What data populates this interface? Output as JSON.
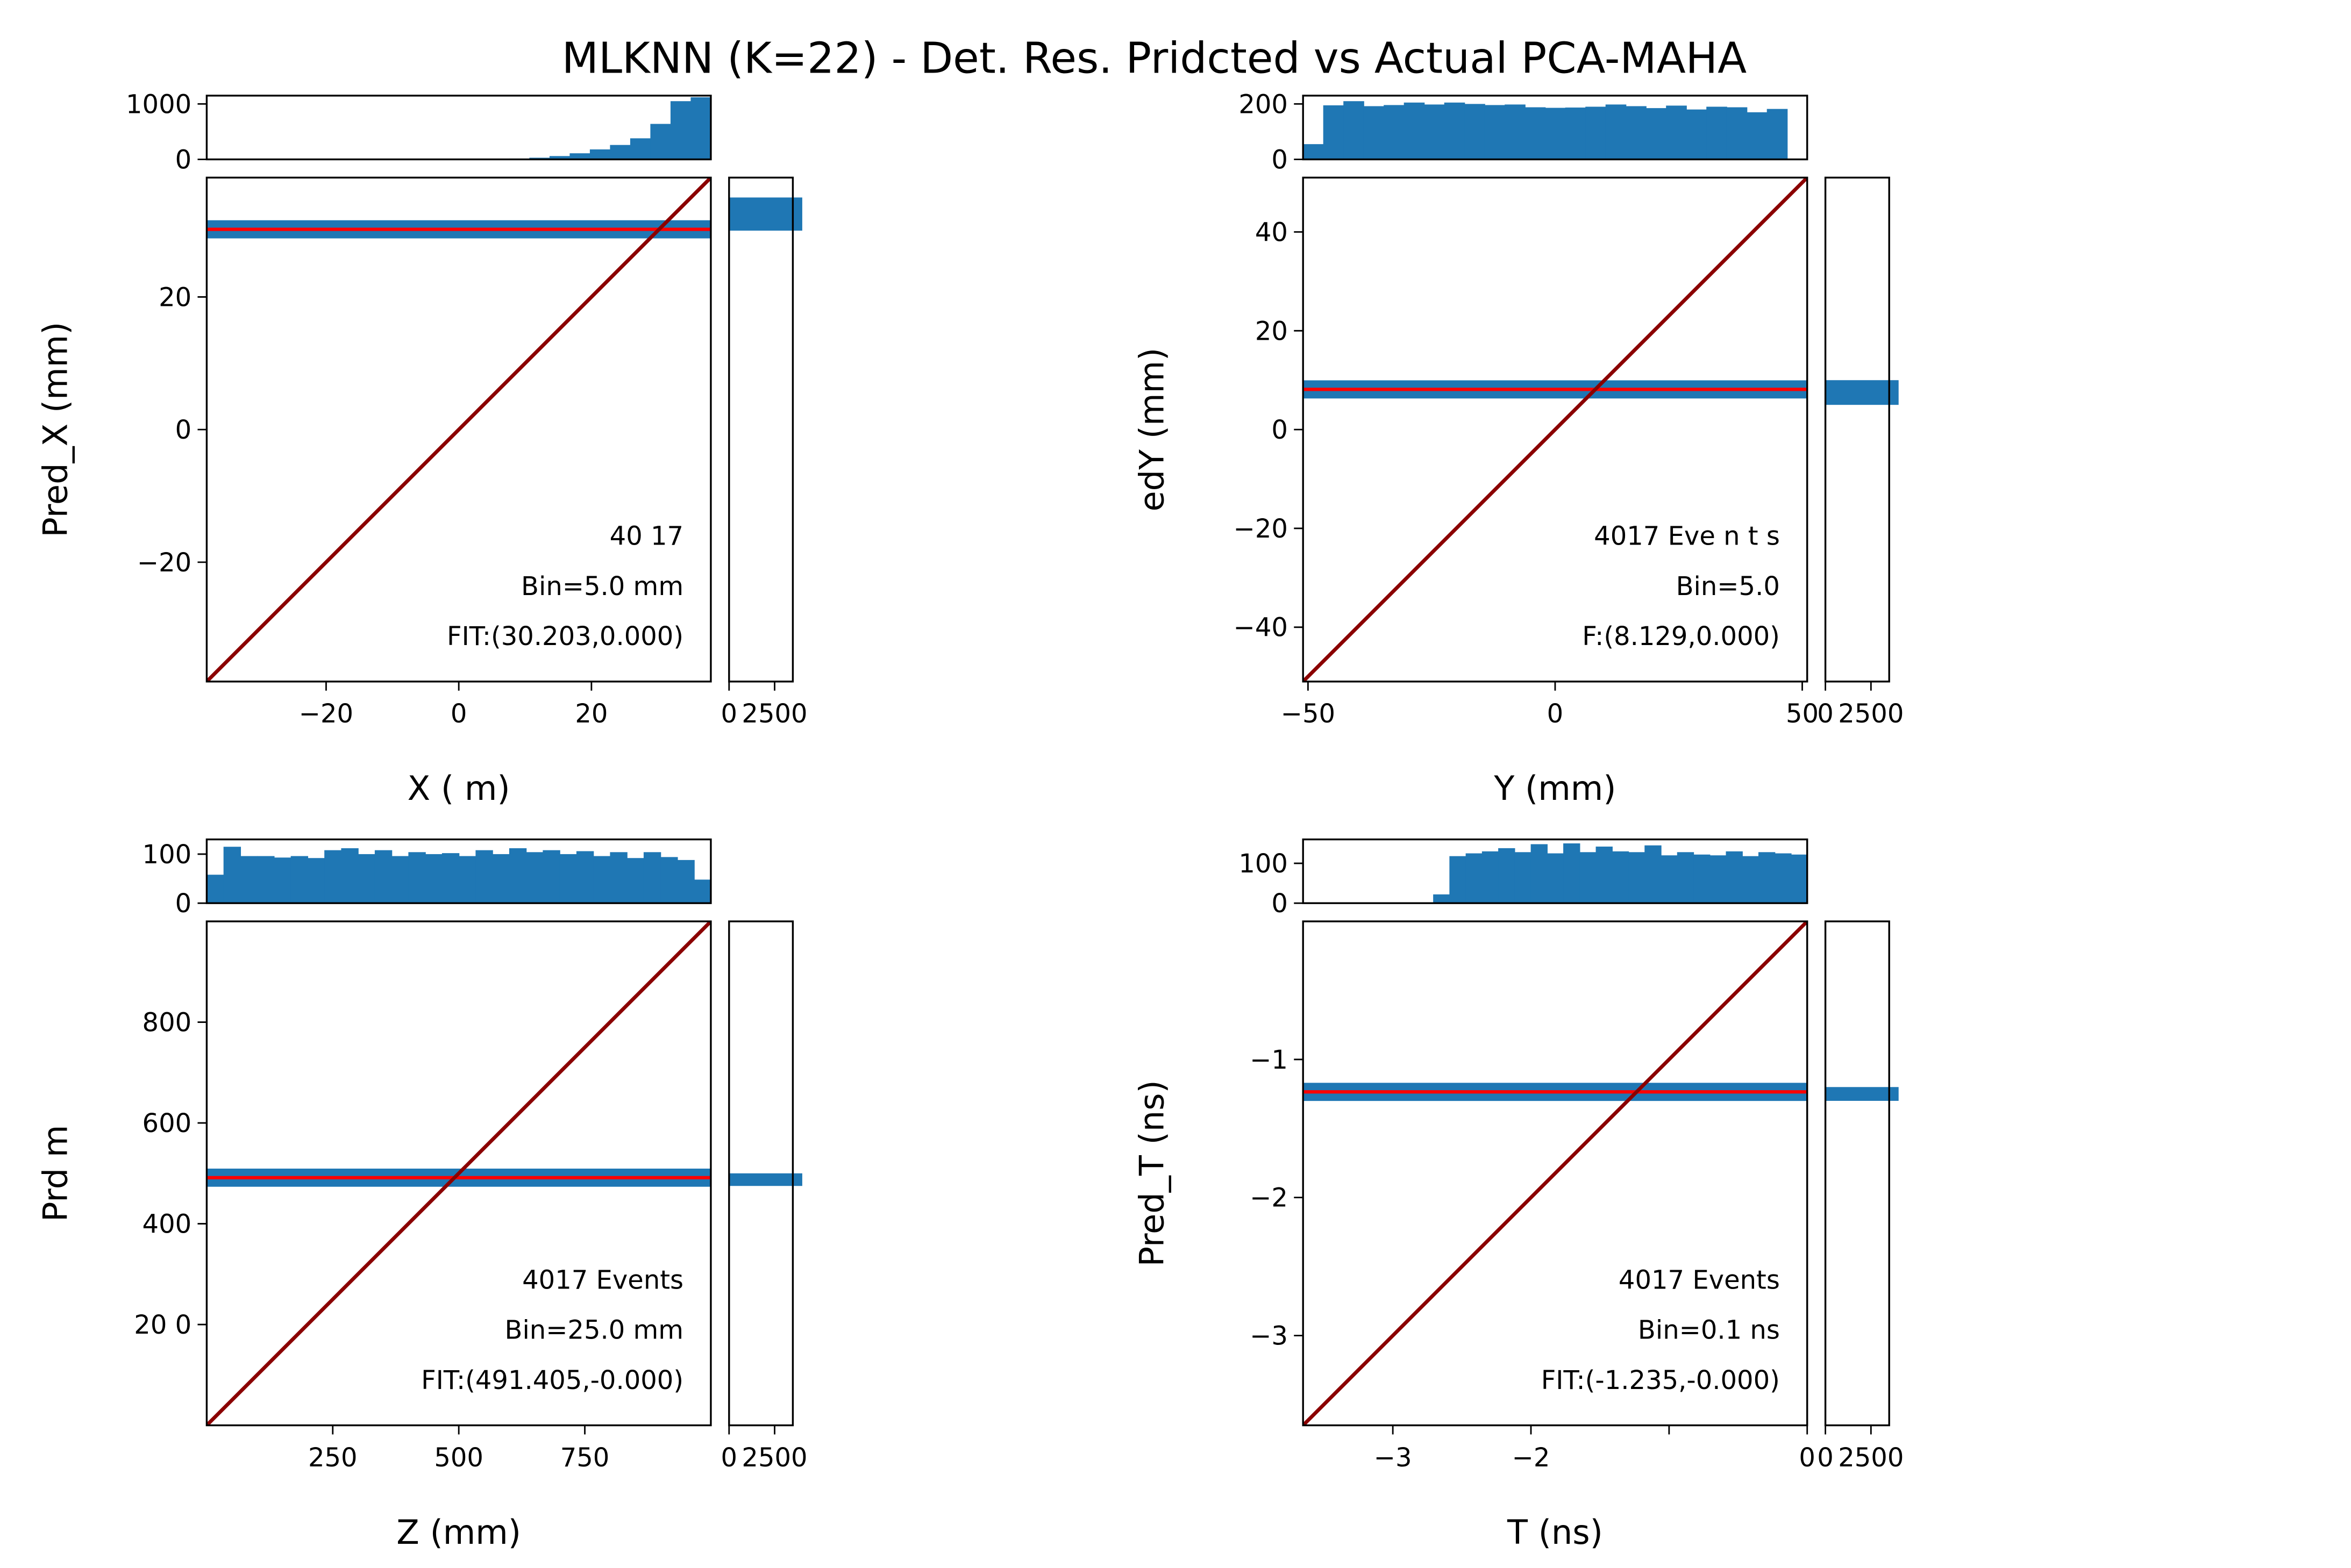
{
  "figure": {
    "title": "MLKNN (K=22) - Det. Res. Pridcted vs Actual PCA-MAHA"
  },
  "colors": {
    "hist": "#1f77b4",
    "points": "#1f77b4",
    "fit": "#ff0000",
    "identity": "#8b0000",
    "frame": "#000000"
  },
  "chart_data": [
    {
      "type": "scatter",
      "panel": "top-left",
      "xlabel": "X ( m)",
      "ylabel": "Pred_X (mm)",
      "xlim": [
        -38,
        38
      ],
      "ylim": [
        -38,
        38
      ],
      "xticks": [
        {
          "v": -20,
          "label": "−20"
        },
        {
          "v": 0,
          "label": "0"
        },
        {
          "v": 20,
          "label": "20"
        }
      ],
      "yticks": [
        {
          "v": -20,
          "label": "−20"
        },
        {
          "v": 0,
          "label": "0"
        },
        {
          "v": 20,
          "label": "20"
        }
      ],
      "fit_y": 30.2,
      "points_x": [
        -36,
        -34,
        -30,
        -28,
        -26,
        -25,
        -23,
        -21,
        -18,
        -15,
        -14,
        -12,
        -10,
        -6,
        -3,
        0,
        5,
        10,
        15,
        20,
        25,
        30,
        35
      ],
      "annotations": [
        "40 17",
        "Bin=5.0 mm",
        "FIT:(30.203,0.000)"
      ],
      "top_hist": {
        "ylim": [
          0,
          1150
        ],
        "yticks": [
          {
            "v": 0,
            "label": "0"
          },
          {
            "v": 1000,
            "label": "1000"
          }
        ],
        "values": [
          0,
          0,
          0,
          0,
          0,
          0,
          0,
          0,
          0,
          0,
          0,
          1,
          2,
          4,
          8,
          15,
          30,
          60,
          110,
          180,
          260,
          380,
          640,
          1050,
          1120
        ]
      },
      "right_hist": {
        "xlim": [
          0,
          3500
        ],
        "xticks": [
          {
            "v": 0,
            "label": "0"
          },
          {
            "v": 2500,
            "label": "2500"
          }
        ],
        "bar_range": [
          30,
          35
        ],
        "bar_value": 4017
      }
    },
    {
      "type": "scatter",
      "panel": "top-right",
      "xlabel": "Y (mm)",
      "ylabel": "edY (mm)",
      "xlim": [
        -51,
        51
      ],
      "ylim": [
        -51,
        51
      ],
      "xticks": [
        {
          "v": -50,
          "label": "−50"
        },
        {
          "v": 0,
          "label": "0"
        },
        {
          "v": 50,
          "label": "50"
        }
      ],
      "yticks": [
        {
          "v": -40,
          "label": "−40"
        },
        {
          "v": -20,
          "label": "−20"
        },
        {
          "v": 0,
          "label": "0"
        },
        {
          "v": 20,
          "label": "20"
        },
        {
          "v": 40,
          "label": "40"
        }
      ],
      "fit_y": 8.13,
      "points_x": [
        -50,
        -45,
        -40,
        -35,
        -30,
        -25,
        -20,
        -15,
        -10,
        -5,
        0,
        5,
        10,
        15,
        20,
        25,
        30,
        35,
        40,
        45,
        50
      ],
      "annotations": [
        "4017 Eve n t  s",
        "Bin=5.0",
        "F:(8.129,0.000)"
      ],
      "top_hist": {
        "ylim": [
          0,
          230
        ],
        "yticks": [
          {
            "v": 0,
            "label": "0"
          },
          {
            "v": 200,
            "label": "200"
          }
        ],
        "values": [
          55,
          195,
          210,
          192,
          196,
          205,
          198,
          205,
          200,
          196,
          198,
          188,
          186,
          187,
          190,
          198,
          192,
          185,
          194,
          180,
          190,
          188,
          170,
          182,
          0
        ]
      },
      "right_hist": {
        "xlim": [
          0,
          3500
        ],
        "xticks": [
          {
            "v": 0,
            "label": "0"
          },
          {
            "v": 2500,
            "label": "2500"
          }
        ],
        "bar_range": [
          5,
          10
        ],
        "bar_value": 4017
      }
    },
    {
      "type": "scatter",
      "panel": "bottom-left",
      "xlabel": "Z (mm)",
      "ylabel": "Prd  m",
      "xlim": [
        0,
        1000
      ],
      "ylim": [
        0,
        1000
      ],
      "xticks": [
        {
          "v": 250,
          "label": "250"
        },
        {
          "v": 500,
          "label": "500"
        },
        {
          "v": 750,
          "label": "750"
        }
      ],
      "yticks": [
        {
          "v": 200,
          "label": "20 0"
        },
        {
          "v": 400,
          "label": "400"
        },
        {
          "v": 600,
          "label": "600"
        },
        {
          "v": 800,
          "label": "800"
        }
      ],
      "fit_y": 491.4,
      "points_x": [
        10,
        60,
        120,
        180,
        240,
        300,
        360,
        420,
        480,
        540,
        600,
        660,
        720,
        780,
        840,
        900,
        960,
        995
      ],
      "annotations": [
        "4017 Events",
        "Bin=25.0 mm",
        "FIT:(491.405,-0.000)"
      ],
      "top_hist": {
        "ylim": [
          0,
          130
        ],
        "yticks": [
          {
            "v": 0,
            "label": "0"
          },
          {
            "v": 100,
            "label": "100"
          }
        ],
        "values": [
          58,
          115,
          96,
          96,
          93,
          96,
          92,
          108,
          112,
          100,
          108,
          96,
          104,
          100,
          102,
          96,
          108,
          100,
          112,
          104,
          108,
          100,
          106,
          96,
          104,
          92,
          104,
          94,
          88,
          48
        ]
      },
      "right_hist": {
        "xlim": [
          0,
          3500
        ],
        "xticks": [
          {
            "v": 0,
            "label": "0"
          },
          {
            "v": 2500,
            "label": "2500"
          }
        ],
        "bar_range": [
          475,
          500
        ],
        "bar_value": 4017
      }
    },
    {
      "type": "scatter",
      "panel": "bottom-right",
      "xlabel": "T (ns)",
      "ylabel": "Pred_T (ns)",
      "xlim": [
        -3.65,
        0
      ],
      "ylim": [
        -3.65,
        0
      ],
      "xticks": [
        {
          "v": -3,
          "label": "−3"
        },
        {
          "v": -2,
          "label": "−2"
        },
        {
          "v": -1,
          "label": ""
        },
        {
          "v": 0,
          "label": "0"
        }
      ],
      "yticks": [
        {
          "v": -3,
          "label": "−3"
        },
        {
          "v": -2,
          "label": "−2"
        },
        {
          "v": -1,
          "label": "−1"
        }
      ],
      "fit_y": -1.235,
      "points_x": [
        -3.35,
        -3.05,
        -2.95,
        -2.85,
        -2.6,
        -2.4,
        -2.2,
        -2.0,
        -1.8,
        -1.6,
        -1.4,
        -1.2,
        -1.0,
        -0.8,
        -0.6,
        -0.4,
        -0.2,
        -0.05
      ],
      "annotations": [
        "4017 Events",
        "Bin=0.1 ns",
        "FIT:(-1.235,-0.000)"
      ],
      "top_hist": {
        "ylim": [
          0,
          160
        ],
        "yticks": [
          {
            "v": 0,
            "label": "0"
          },
          {
            "v": 100,
            "label": "100"
          }
        ],
        "values": [
          0,
          0,
          0,
          0,
          0,
          0,
          0,
          0,
          22,
          118,
          125,
          130,
          138,
          128,
          148,
          125,
          150,
          128,
          142,
          130,
          128,
          145,
          120,
          128,
          122,
          120,
          130,
          118,
          128,
          125,
          122
        ]
      },
      "right_hist": {
        "xlim": [
          0,
          3500
        ],
        "xticks": [
          {
            "v": 0,
            "label": "0"
          },
          {
            "v": 2500,
            "label": "2500"
          }
        ],
        "bar_range": [
          -1.3,
          -1.2
        ],
        "bar_value": 4017
      }
    }
  ]
}
